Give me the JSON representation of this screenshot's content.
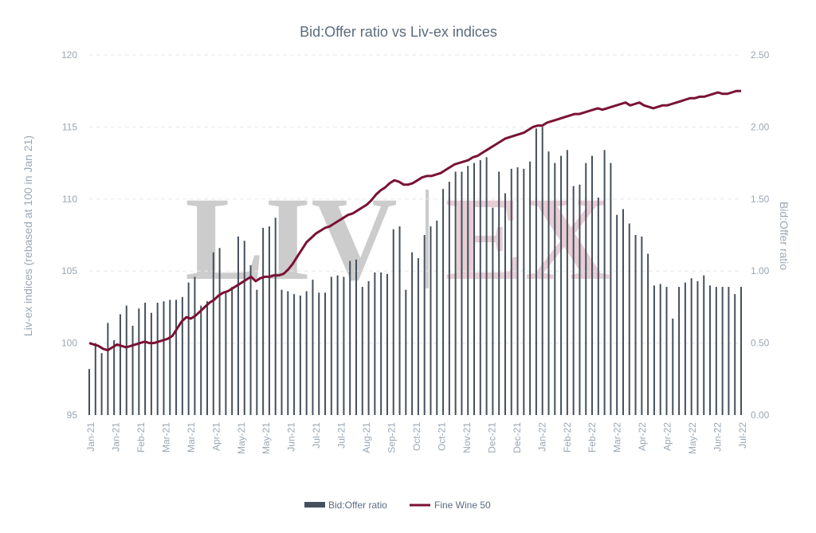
{
  "chart_data": {
    "type": "bar",
    "title": "Bid:Offer ratio vs Liv-ex indices",
    "ylabel_left": "Liv-ex indices (rebased at 100 in Jan 21)",
    "ylabel_right": "Bid:Offer ratio",
    "ylim_left": [
      95,
      120
    ],
    "ylim_right": [
      0,
      2.5
    ],
    "left_ticks": [
      "95",
      "100",
      "105",
      "110",
      "115",
      "120"
    ],
    "right_ticks": [
      "0.00",
      "0.50",
      "1.00",
      "1.50",
      "2.00",
      "2.50"
    ],
    "x_tick_labels": [
      "Jan-21",
      "Jan-21",
      "Feb-21",
      "Mar-21",
      "Mar-21",
      "Apr-21",
      "May-21",
      "May-21",
      "Jun-21",
      "Jul-21",
      "Jul-21",
      "Aug-21",
      "Sep-21",
      "Oct-21",
      "Oct-21",
      "Nov-21",
      "Dec-21",
      "Dec-21",
      "Jan-22",
      "Feb-22",
      "Feb-22",
      "Mar-22",
      "Apr-22",
      "Apr-22",
      "May-22",
      "Jun-22",
      "Jul-22"
    ],
    "grid": true,
    "watermark": [
      "LIV",
      "EX"
    ],
    "legend": {
      "position": "bottom-center"
    },
    "series": [
      {
        "name": "Bid:Offer ratio",
        "type": "bar",
        "axis": "right",
        "color": "#44505c",
        "values": [
          0.32,
          0.5,
          0.43,
          0.64,
          0.52,
          0.7,
          0.76,
          0.62,
          0.74,
          0.78,
          0.71,
          0.78,
          0.79,
          0.8,
          0.8,
          0.82,
          0.92,
          0.96,
          0.76,
          0.79,
          1.13,
          1.16,
          0.85,
          0.89,
          1.24,
          1.21,
          1.04,
          0.87,
          1.3,
          1.31,
          1.37,
          0.87,
          0.86,
          0.84,
          0.83,
          0.86,
          0.94,
          0.85,
          0.85,
          0.96,
          0.97,
          0.96,
          1.07,
          1.08,
          0.89,
          0.93,
          0.99,
          0.99,
          0.98,
          1.29,
          1.31,
          0.87,
          1.13,
          1.09,
          1.25,
          1.31,
          1.35,
          1.57,
          1.62,
          1.69,
          1.69,
          1.73,
          1.75,
          1.77,
          1.79,
          1.44,
          1.69,
          1.54,
          1.71,
          1.72,
          1.71,
          1.76,
          1.99,
          2.0,
          1.83,
          1.75,
          1.8,
          1.84,
          1.59,
          1.6,
          1.75,
          1.8,
          1.51,
          1.84,
          1.75,
          1.39,
          1.43,
          1.33,
          1.25,
          1.24,
          1.12,
          0.9,
          0.91,
          0.89,
          0.67,
          0.89,
          0.92,
          0.95,
          0.93,
          0.97,
          0.9,
          0.89,
          0.89,
          0.89,
          0.84,
          0.89
        ]
      },
      {
        "name": "Fine Wine 50",
        "type": "line",
        "axis": "left",
        "color": "#7a1233",
        "values": [
          100.0,
          99.9,
          99.8,
          99.6,
          99.5,
          99.7,
          99.9,
          99.8,
          99.7,
          99.8,
          99.9,
          100.0,
          100.1,
          100.0,
          100.0,
          100.1,
          100.2,
          100.3,
          100.5,
          101.0,
          101.5,
          101.8,
          101.7,
          101.9,
          102.2,
          102.5,
          102.8,
          103.0,
          103.3,
          103.5,
          103.6,
          103.8,
          104.0,
          104.2,
          104.4,
          104.6,
          104.3,
          104.5,
          104.6,
          104.6,
          104.7,
          104.7,
          104.8,
          105.1,
          105.5,
          106.0,
          106.5,
          107.0,
          107.3,
          107.6,
          107.8,
          108.0,
          108.1,
          108.3,
          108.5,
          108.7,
          108.9,
          109.0,
          109.2,
          109.4,
          109.6,
          109.9,
          110.3,
          110.6,
          110.8,
          111.1,
          111.3,
          111.2,
          111.0,
          111.0,
          111.1,
          111.3,
          111.5,
          111.6,
          111.6,
          111.7,
          111.8,
          112.0,
          112.2,
          112.4,
          112.5,
          112.6,
          112.7,
          112.9,
          113.0,
          113.2,
          113.4,
          113.6,
          113.8,
          114.0,
          114.2,
          114.3,
          114.4,
          114.5,
          114.6,
          114.8,
          115.0,
          115.1,
          115.1,
          115.3,
          115.4,
          115.5,
          115.6,
          115.7,
          115.8,
          115.9,
          115.9,
          116.0,
          116.1,
          116.2,
          116.3,
          116.2,
          116.3,
          116.4,
          116.5,
          116.6,
          116.7,
          116.5,
          116.6,
          116.7,
          116.5,
          116.4,
          116.3,
          116.4,
          116.5,
          116.5,
          116.6,
          116.7,
          116.8,
          116.9,
          117.0,
          117.0,
          117.1,
          117.1,
          117.2,
          117.3,
          117.4,
          117.3,
          117.3,
          117.4,
          117.5,
          117.5
        ]
      }
    ]
  }
}
